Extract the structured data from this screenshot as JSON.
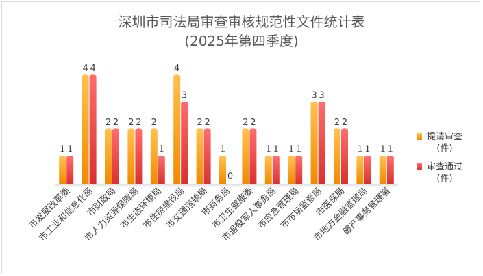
{
  "title_line1": "深圳市司法局审查审核规范性文件统计表",
  "title_line2": "(2025年第四季度)",
  "colors": {
    "series1_top": "#ffc04d",
    "series1_bottom": "#f08a00",
    "series2_top": "#ff6b6b",
    "series2_bottom": "#d93030",
    "axis": "#d9d9d9",
    "label": "#404040"
  },
  "chart_data": {
    "type": "bar",
    "title": "深圳市司法局审查审核规范性文件统计表 (2025年第四季度)",
    "categories": [
      "市发展改革委",
      "市工业和信息化局",
      "市财政局",
      "市人力资源保障局",
      "市生态环境局",
      "市住房建设局",
      "市交通运输局",
      "市商务局",
      "市卫生健康委",
      "市退役军人事务局",
      "市应急管理局",
      "市市场监管局",
      "市医保局",
      "市地方金融管理局",
      "破产事务管理署"
    ],
    "series": [
      {
        "name": "提请审查(件)",
        "label_line1": "提请审查",
        "label_line2": "(件)",
        "values": [
          1,
          4,
          2,
          2,
          2,
          4,
          2,
          1,
          2,
          1,
          1,
          3,
          2,
          1,
          1
        ]
      },
      {
        "name": "审查通过(件)",
        "label_line1": "审查通过",
        "label_line2": "(件)",
        "values": [
          1,
          4,
          2,
          2,
          1,
          3,
          2,
          0,
          2,
          1,
          1,
          3,
          2,
          1,
          1
        ]
      }
    ],
    "ylim": [
      0,
      4.3
    ],
    "grid": false,
    "legend_position": "right",
    "data_labels": true
  }
}
